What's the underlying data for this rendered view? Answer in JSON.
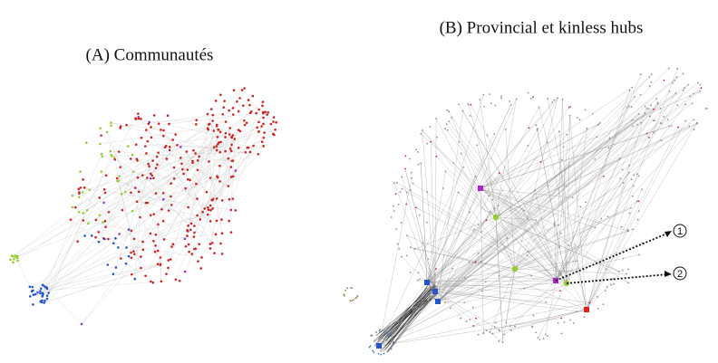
{
  "panel_a": {
    "caption": "(A) Communautés"
  },
  "panel_b": {
    "caption": "(B) Provincial et kinless hubs",
    "annotations": [
      "1",
      "2"
    ]
  }
}
